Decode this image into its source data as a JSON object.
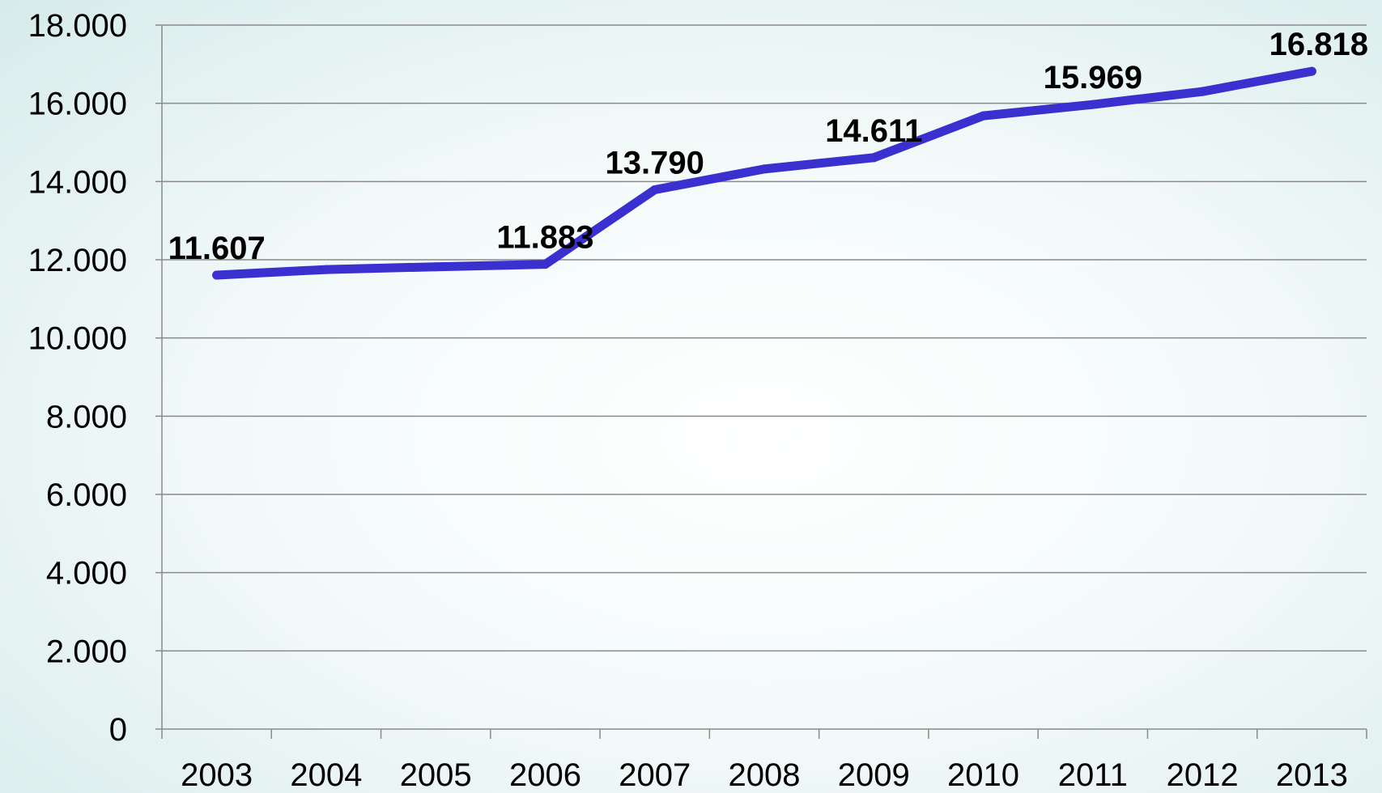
{
  "chart_data": {
    "type": "line",
    "title": "",
    "xlabel": "",
    "ylabel": "",
    "categories": [
      "2003",
      "2004",
      "2005",
      "2006",
      "2007",
      "2008",
      "2009",
      "2010",
      "2011",
      "2012",
      "2013"
    ],
    "series": [
      {
        "values": [
          11607,
          11750,
          11820,
          11883,
          13790,
          14320,
          14611,
          15680,
          15969,
          16300,
          16818
        ]
      }
    ],
    "data_labels": [
      {
        "index": 0,
        "text": "11.607"
      },
      {
        "index": 3,
        "text": "11.883"
      },
      {
        "index": 4,
        "text": "13.790"
      },
      {
        "index": 6,
        "text": "14.611"
      },
      {
        "index": 8,
        "text": "15.969"
      },
      {
        "index": 10,
        "text": "16.818"
      }
    ],
    "ylim": [
      0,
      18000
    ],
    "y_ticks": [
      "0",
      "2.000",
      "4.000",
      "6.000",
      "8.000",
      "10.000",
      "12.000",
      "14.000",
      "16.000",
      "18.000"
    ],
    "grid": true,
    "legend": "none",
    "line_color": "#3a2fcf",
    "grid_color": "#8a8a8a"
  }
}
